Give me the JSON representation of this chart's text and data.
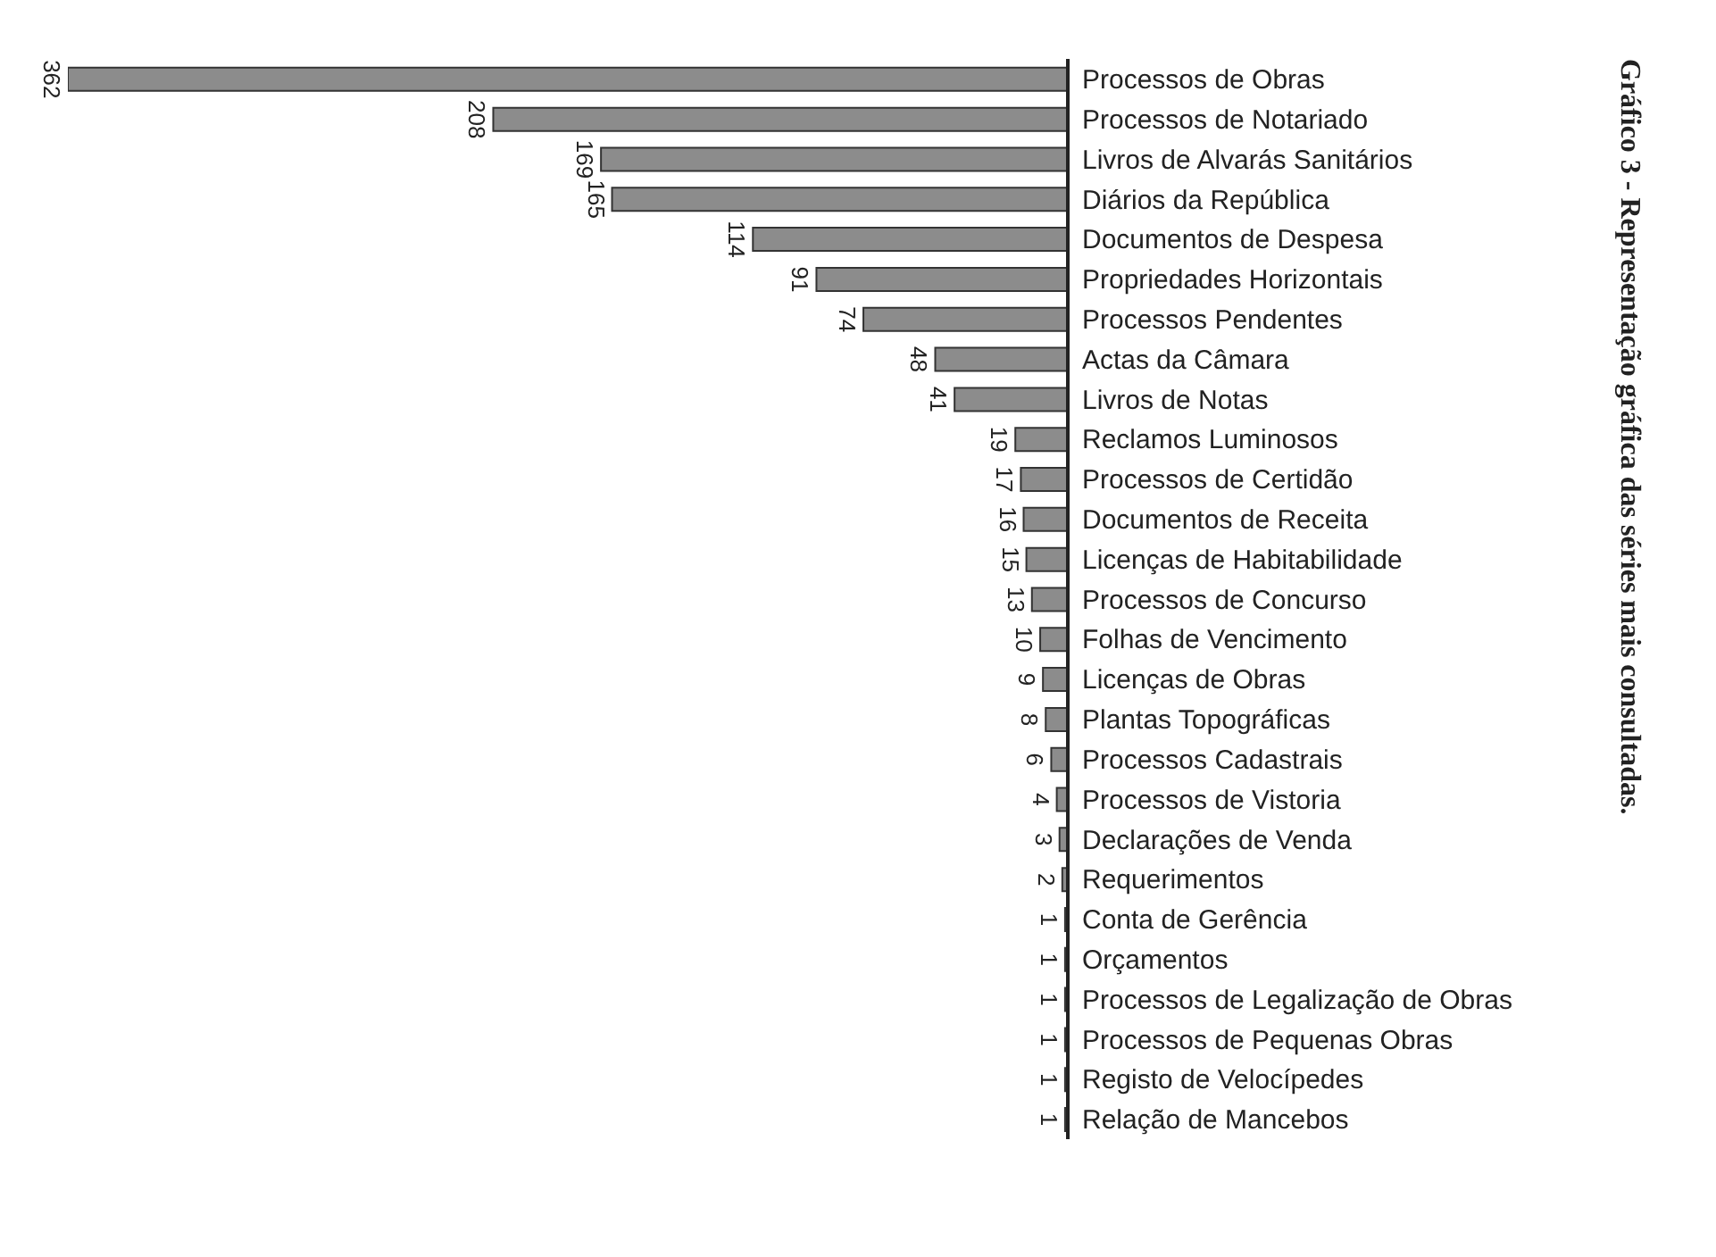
{
  "chart_data": {
    "type": "bar",
    "orientation": "horizontal",
    "title": "Gráfico 3 - Representação gráfica das séries mais consultadas.",
    "categories": [
      "Processos de Obras",
      "Processos de Notariado",
      "Livros de Alvarás Sanitários",
      "Diários da República",
      "Documentos de Despesa",
      "Propriedades Horizontais",
      "Processos Pendentes",
      "Actas da Câmara",
      "Livros de Notas",
      "Reclamos Luminosos",
      "Processos de Certidão",
      "Documentos de Receita",
      "Licenças de Habitabilidade",
      "Processos de Concurso",
      "Folhas de Vencimento",
      "Licenças de Obras",
      "Plantas Topográficas",
      "Processos Cadastrais",
      "Processos de Vistoria",
      "Declarações de Venda",
      "Requerimentos",
      "Conta de Gerência",
      "Orçamentos",
      "Processos de Legalização de Obras",
      "Processos de Pequenas Obras",
      "Registo de Velocípedes",
      "Relação de Mancebos"
    ],
    "values": [
      362,
      208,
      169,
      165,
      114,
      91,
      74,
      48,
      41,
      19,
      17,
      16,
      15,
      13,
      10,
      9,
      8,
      6,
      4,
      3,
      2,
      1,
      1,
      1,
      1,
      1,
      1
    ],
    "color": "#8c8c8c",
    "data_labels": true,
    "grid": false,
    "legend": false
  }
}
